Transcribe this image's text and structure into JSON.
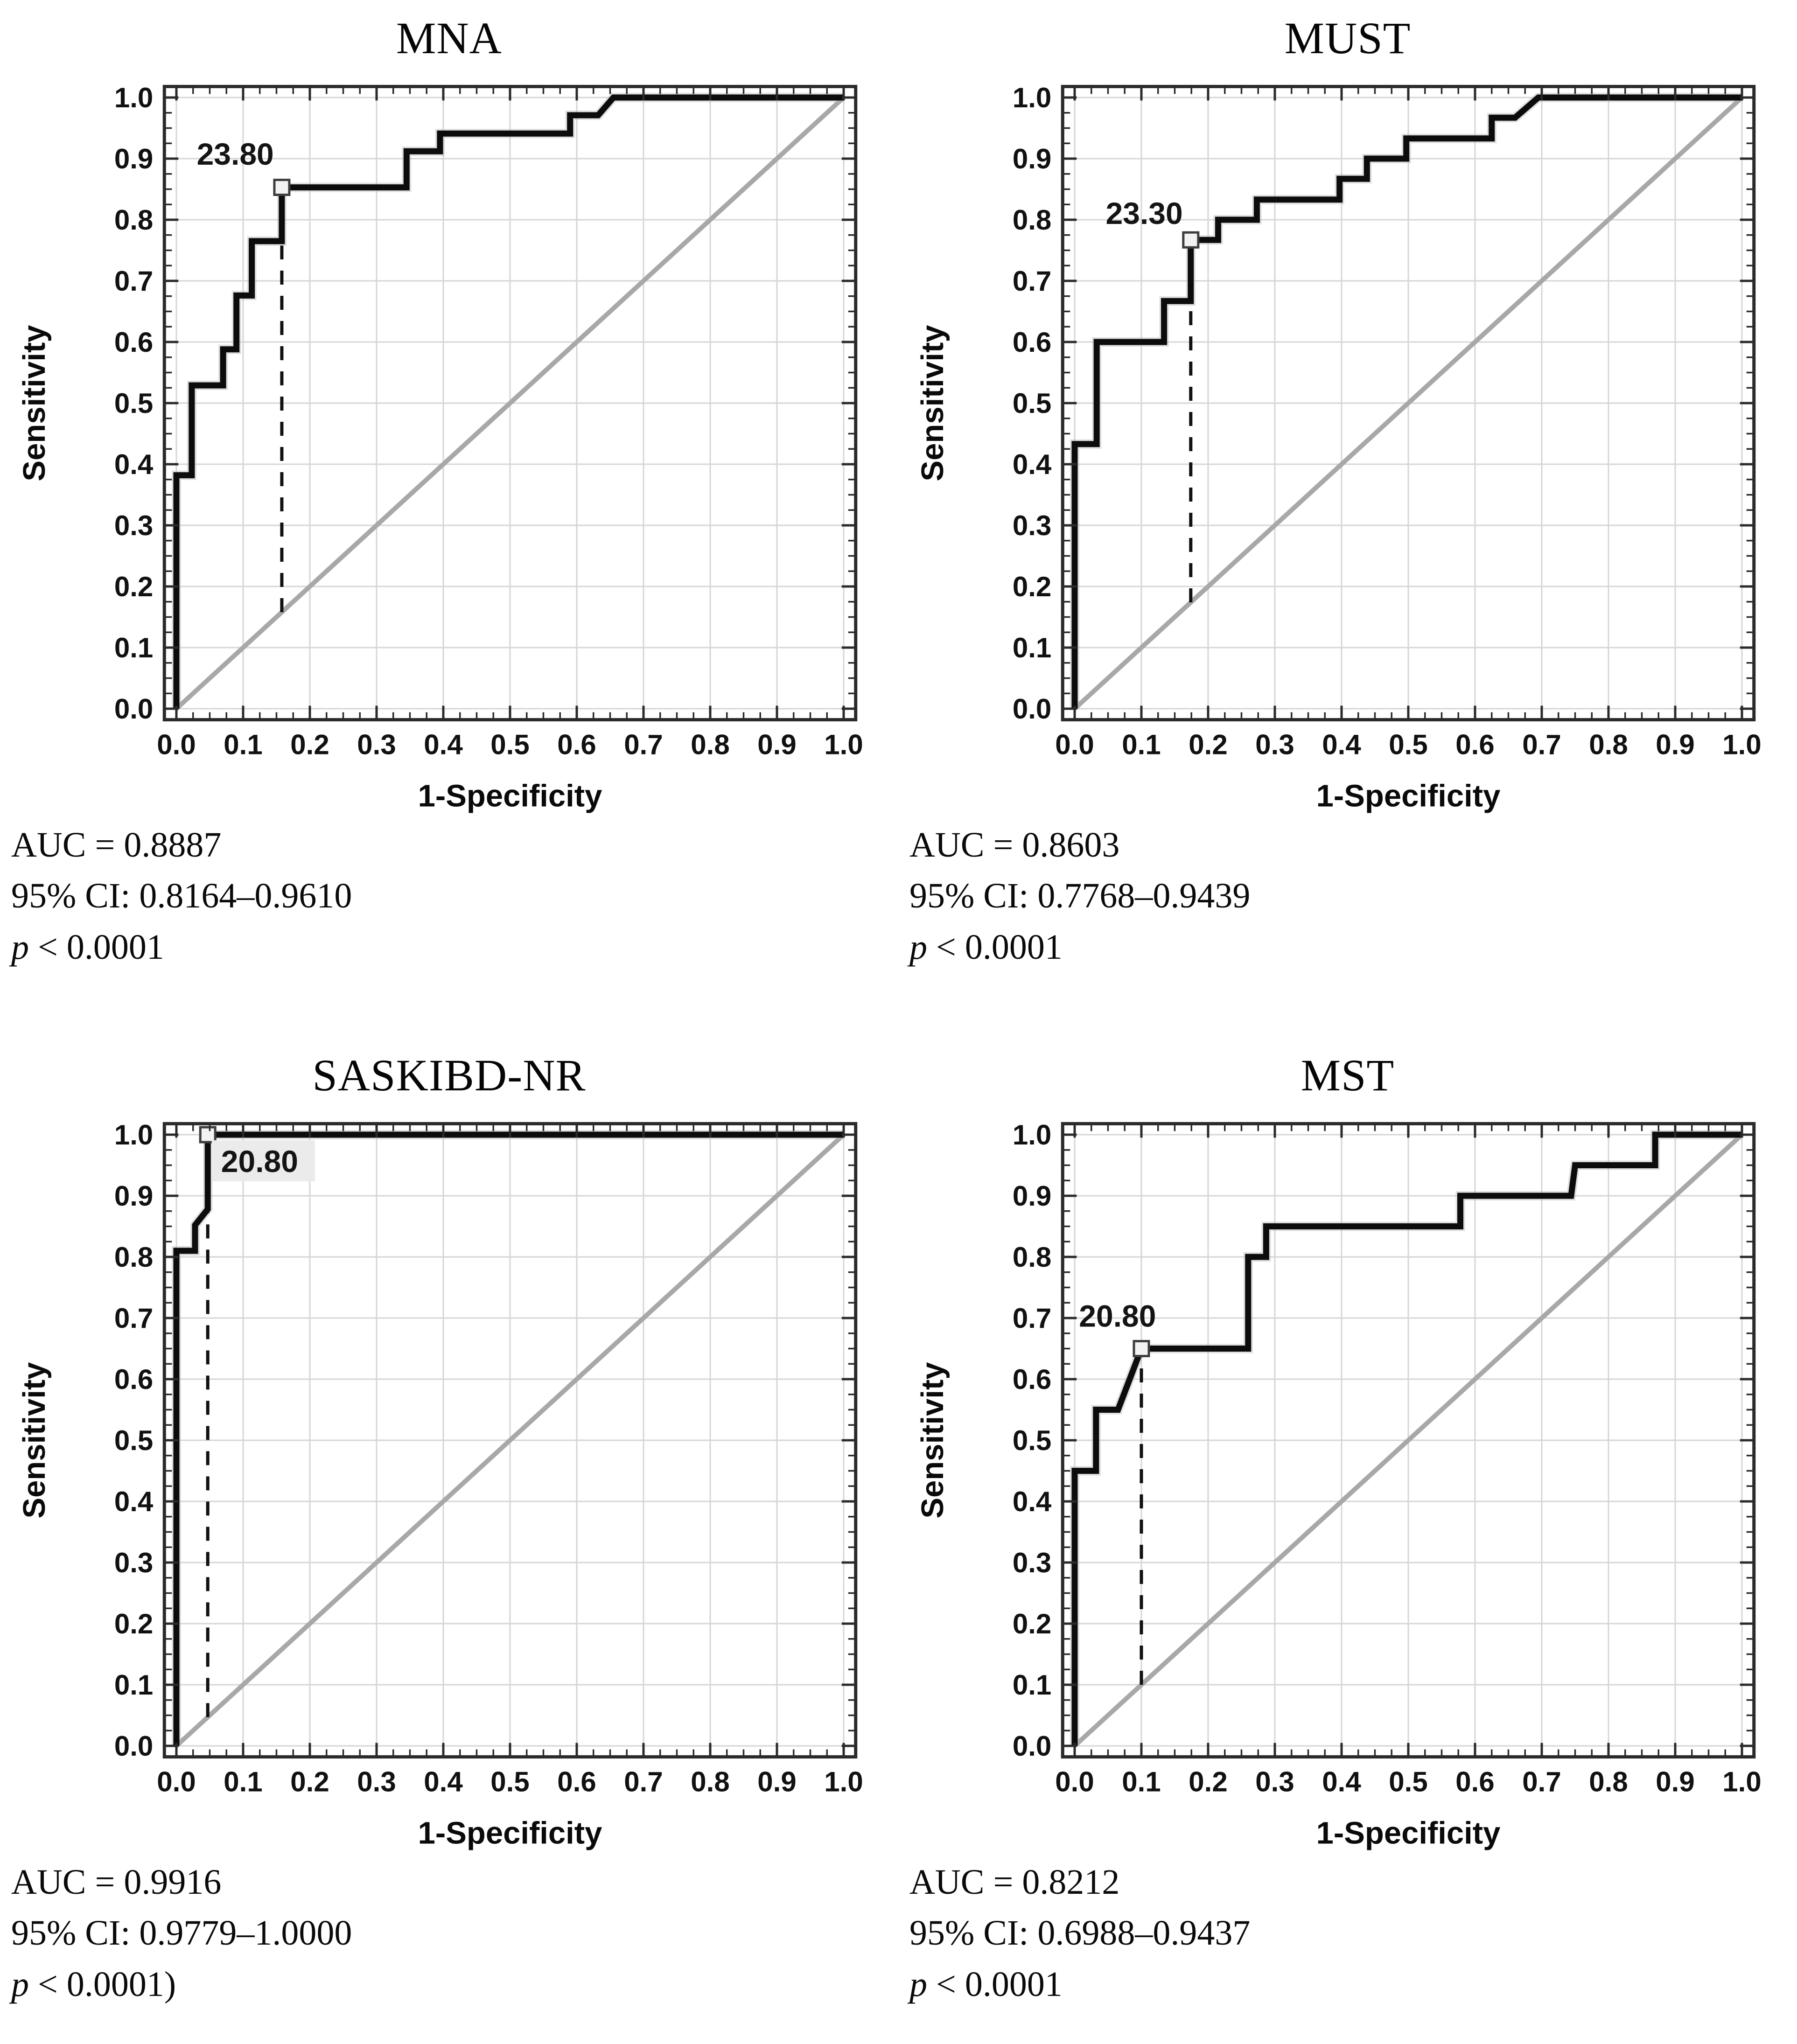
{
  "figure": {
    "background": "#ffffff",
    "xlabel": "1-Specificity",
    "ylabel": "Sensitivity",
    "tick_labels": [
      "0.0",
      "0.1",
      "0.2",
      "0.3",
      "0.4",
      "0.5",
      "0.6",
      "0.7",
      "0.8",
      "0.9",
      "1.0"
    ]
  },
  "style": {
    "curve_color": "#0c0c0c",
    "diagonal_color": "#a8a8a8",
    "grid_color": "#d6d6d6",
    "axis_color": "#2a2a2a",
    "marker_fill": "#f2f2f2",
    "marker_stroke": "#3d3d3d",
    "cutoff_box_fill": "#ebebeb"
  },
  "chart_data": [
    {
      "type": "line",
      "title": "MNA",
      "xlabel": "1-Specificity",
      "ylabel": "Sensitivity",
      "xlim": [
        0,
        1
      ],
      "ylim": [
        0,
        1
      ],
      "grid": true,
      "grid_step": 0.1,
      "minor_tick_step": 0.025,
      "legend": "none",
      "diagonal": [
        [
          0,
          0
        ],
        [
          1,
          1
        ]
      ],
      "roc_points": [
        [
          0,
          0
        ],
        [
          0,
          0.382
        ],
        [
          0.023,
          0.382
        ],
        [
          0.023,
          0.529
        ],
        [
          0.07,
          0.529
        ],
        [
          0.07,
          0.588
        ],
        [
          0.09,
          0.588
        ],
        [
          0.09,
          0.676
        ],
        [
          0.113,
          0.676
        ],
        [
          0.113,
          0.765
        ],
        [
          0.158,
          0.765
        ],
        [
          0.158,
          0.853
        ],
        [
          0.345,
          0.853
        ],
        [
          0.345,
          0.912
        ],
        [
          0.395,
          0.912
        ],
        [
          0.395,
          0.941
        ],
        [
          0.59,
          0.941
        ],
        [
          0.59,
          0.971
        ],
        [
          0.632,
          0.971
        ],
        [
          0.655,
          1.0
        ],
        [
          1,
          1
        ]
      ],
      "cutoff": {
        "label": "23.80",
        "x": 0.158,
        "y": 0.853,
        "label_x": 0.146,
        "label_y": 0.893,
        "anchor": "end",
        "boxed": false
      },
      "stats": {
        "auc": "AUC = 0.8887",
        "ci": "95% CI: 0.8164–0.9610",
        "p_italic": "p",
        "p_tail": " < 0.0001"
      }
    },
    {
      "type": "line",
      "title": "MUST",
      "xlabel": "1-Specificity",
      "ylabel": "Sensitivity",
      "xlim": [
        0,
        1
      ],
      "ylim": [
        0,
        1
      ],
      "grid": true,
      "grid_step": 0.1,
      "minor_tick_step": 0.025,
      "legend": "none",
      "diagonal": [
        [
          0,
          0
        ],
        [
          1,
          1
        ]
      ],
      "roc_points": [
        [
          0,
          0
        ],
        [
          0,
          0.433
        ],
        [
          0.033,
          0.433
        ],
        [
          0.033,
          0.6
        ],
        [
          0.134,
          0.6
        ],
        [
          0.134,
          0.667
        ],
        [
          0.174,
          0.667
        ],
        [
          0.174,
          0.767
        ],
        [
          0.215,
          0.767
        ],
        [
          0.215,
          0.8
        ],
        [
          0.273,
          0.8
        ],
        [
          0.273,
          0.833
        ],
        [
          0.397,
          0.833
        ],
        [
          0.397,
          0.867
        ],
        [
          0.438,
          0.867
        ],
        [
          0.438,
          0.9
        ],
        [
          0.497,
          0.9
        ],
        [
          0.497,
          0.933
        ],
        [
          0.625,
          0.933
        ],
        [
          0.625,
          0.967
        ],
        [
          0.66,
          0.967
        ],
        [
          0.695,
          1.0
        ],
        [
          1,
          1
        ]
      ],
      "cutoff": {
        "label": "23.30",
        "x": 0.174,
        "y": 0.767,
        "label_x": 0.162,
        "label_y": 0.796,
        "anchor": "end",
        "boxed": false
      },
      "stats": {
        "auc": "AUC = 0.8603",
        "ci": "95% CI: 0.7768–0.9439",
        "p_italic": "p",
        "p_tail": " < 0.0001"
      }
    },
    {
      "type": "line",
      "title": "SASKIBD-NR",
      "xlabel": "1-Specificity",
      "ylabel": "Sensitivity",
      "xlim": [
        0,
        1
      ],
      "ylim": [
        0,
        1
      ],
      "grid": true,
      "grid_step": 0.1,
      "minor_tick_step": 0.025,
      "legend": "none",
      "diagonal": [
        [
          0,
          0
        ],
        [
          1,
          1
        ]
      ],
      "roc_points": [
        [
          0,
          0
        ],
        [
          0,
          0.81
        ],
        [
          0.028,
          0.81
        ],
        [
          0.028,
          0.852
        ],
        [
          0.047,
          0.878
        ],
        [
          0.047,
          1.0
        ],
        [
          1,
          1
        ]
      ],
      "cutoff": {
        "label": "20.80",
        "x": 0.047,
        "y": 1.0,
        "label_x": 0.067,
        "label_y": 0.942,
        "anchor": "start",
        "boxed": true
      },
      "stats": {
        "auc": "AUC = 0.9916",
        "ci": "95% CI: 0.9779–1.0000",
        "p_italic": "p",
        "p_tail": " < 0.0001)"
      }
    },
    {
      "type": "line",
      "title": "MST",
      "xlabel": "1-Specificity",
      "ylabel": "Sensitivity",
      "xlim": [
        0,
        1
      ],
      "ylim": [
        0,
        1
      ],
      "grid": true,
      "grid_step": 0.1,
      "minor_tick_step": 0.025,
      "legend": "none",
      "diagonal": [
        [
          0,
          0
        ],
        [
          1,
          1
        ]
      ],
      "roc_points": [
        [
          0,
          0
        ],
        [
          0,
          0.45
        ],
        [
          0.032,
          0.45
        ],
        [
          0.032,
          0.55
        ],
        [
          0.065,
          0.55
        ],
        [
          0.1,
          0.65
        ],
        [
          0.26,
          0.65
        ],
        [
          0.26,
          0.8
        ],
        [
          0.287,
          0.8
        ],
        [
          0.287,
          0.85
        ],
        [
          0.578,
          0.85
        ],
        [
          0.578,
          0.9
        ],
        [
          0.744,
          0.9
        ],
        [
          0.75,
          0.95
        ],
        [
          0.87,
          0.95
        ],
        [
          0.87,
          1.0
        ],
        [
          1,
          1
        ]
      ],
      "cutoff": {
        "label": "20.80",
        "x": 0.1,
        "y": 0.65,
        "label_x": 0.122,
        "label_y": 0.689,
        "anchor": "end",
        "boxed": false
      },
      "stats": {
        "auc": "AUC = 0.8212",
        "ci": "95% CI: 0.6988–0.9437",
        "p_italic": "p",
        "p_tail": " < 0.0001"
      }
    }
  ]
}
